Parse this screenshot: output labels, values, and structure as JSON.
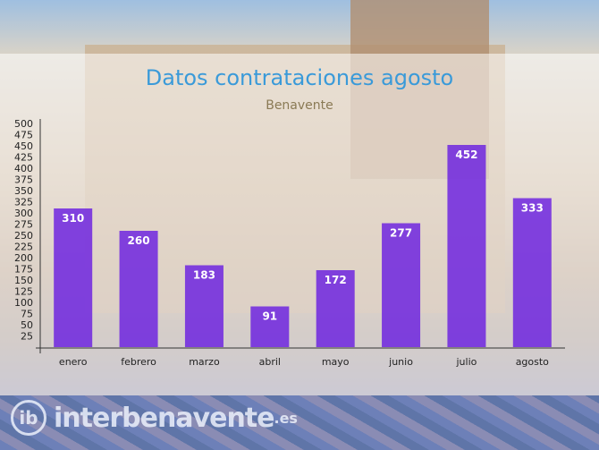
{
  "chart_data": {
    "type": "bar",
    "title": "Datos contrataciones agosto",
    "subtitle": "Benavente",
    "categories": [
      "enero",
      "febrero",
      "marzo",
      "abril",
      "mayo",
      "junio",
      "julio",
      "agosto"
    ],
    "values": [
      310,
      260,
      183,
      91,
      172,
      277,
      452,
      333
    ],
    "ylim": [
      0,
      500
    ],
    "yticks": [
      25,
      50,
      75,
      100,
      125,
      150,
      175,
      200,
      225,
      250,
      275,
      300,
      325,
      350,
      375,
      400,
      425,
      450,
      475,
      500
    ],
    "grid": false,
    "legend": "none",
    "bar_color": "#6a1ee0",
    "title_color": "#3a9ad9",
    "subtitle_color": "#8a7a55"
  },
  "watermark": {
    "name": "interbenavente",
    "tld": ".es",
    "mark": "ib"
  }
}
